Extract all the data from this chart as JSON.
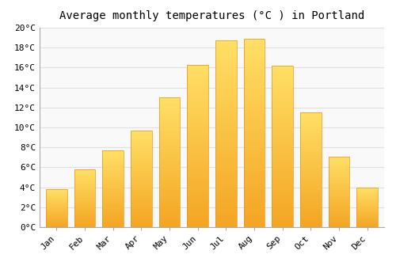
{
  "months": [
    "Jan",
    "Feb",
    "Mar",
    "Apr",
    "May",
    "Jun",
    "Jul",
    "Aug",
    "Sep",
    "Oct",
    "Nov",
    "Dec"
  ],
  "temperatures": [
    3.8,
    5.8,
    7.7,
    9.7,
    13.0,
    16.3,
    18.7,
    18.9,
    16.2,
    11.5,
    7.1,
    4.0
  ],
  "bar_color_bottom": "#F5A623",
  "bar_color_top": "#FFD966",
  "title": "Average monthly temperatures (°C ) in Portland",
  "ylim": [
    0,
    20
  ],
  "ytick_step": 2,
  "background_color": "#ffffff",
  "plot_bg_color": "#f9f9f9",
  "grid_color": "#e0e0e0",
  "title_fontsize": 10,
  "tick_fontsize": 8,
  "font_family": "monospace"
}
